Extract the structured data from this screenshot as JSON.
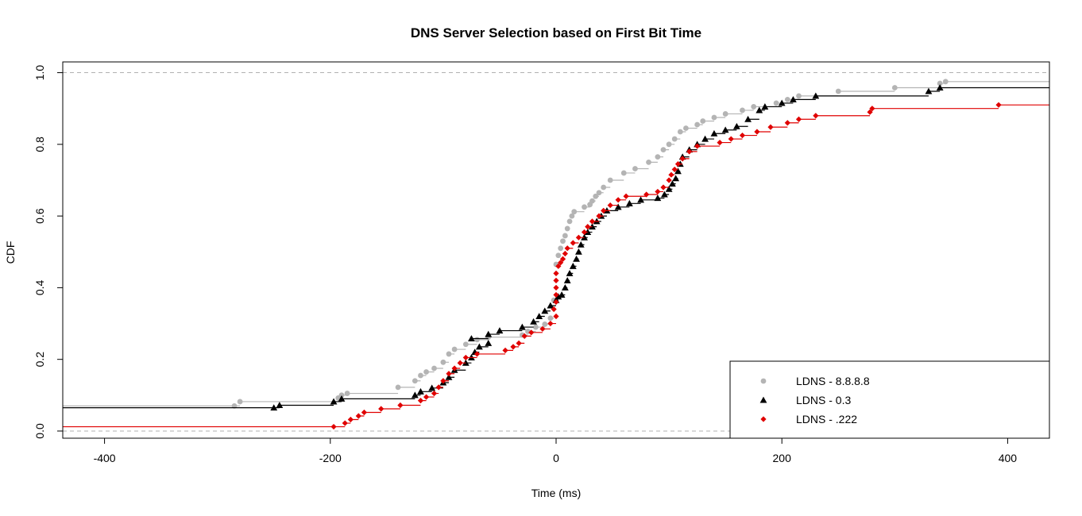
{
  "chart_data": {
    "type": "line",
    "step": true,
    "title": "DNS Server Selection based on First Bit Time",
    "xlabel": "Time (ms)",
    "ylabel": "CDF",
    "xlim": [
      -437,
      437
    ],
    "ylim": [
      -0.02,
      1.03
    ],
    "xticks": [
      -400,
      -200,
      0,
      200,
      400
    ],
    "yticks": [
      0.0,
      0.2,
      0.4,
      0.6,
      0.8,
      1.0
    ],
    "ytick_labels": [
      "0.0",
      "0.2",
      "0.4",
      "0.6",
      "0.8",
      "1.0"
    ],
    "reference_lines": [
      0,
      1
    ],
    "grid": false,
    "legend_position": "bottom-right",
    "series": [
      {
        "name": "LDNS - 8.8.8.8",
        "color": "#b4b4b4",
        "marker": "circle",
        "points": [
          [
            -285,
            0.07
          ],
          [
            -280,
            0.082
          ],
          [
            -193,
            0.092
          ],
          [
            -190,
            0.1
          ],
          [
            -185,
            0.105
          ],
          [
            -140,
            0.122
          ],
          [
            -125,
            0.14
          ],
          [
            -120,
            0.155
          ],
          [
            -115,
            0.165
          ],
          [
            -108,
            0.175
          ],
          [
            -100,
            0.192
          ],
          [
            -95,
            0.215
          ],
          [
            -90,
            0.228
          ],
          [
            -80,
            0.242
          ],
          [
            -70,
            0.255
          ],
          [
            -60,
            0.262
          ],
          [
            -30,
            0.268
          ],
          [
            -25,
            0.278
          ],
          [
            -18,
            0.29
          ],
          [
            -10,
            0.298
          ],
          [
            -5,
            0.315
          ],
          [
            -2,
            0.365
          ],
          [
            0,
            0.465
          ],
          [
            2,
            0.49
          ],
          [
            4,
            0.51
          ],
          [
            6,
            0.53
          ],
          [
            8,
            0.545
          ],
          [
            10,
            0.565
          ],
          [
            12,
            0.585
          ],
          [
            14,
            0.6
          ],
          [
            16,
            0.612
          ],
          [
            25,
            0.625
          ],
          [
            30,
            0.632
          ],
          [
            32,
            0.642
          ],
          [
            35,
            0.655
          ],
          [
            38,
            0.665
          ],
          [
            42,
            0.68
          ],
          [
            48,
            0.7
          ],
          [
            60,
            0.72
          ],
          [
            70,
            0.732
          ],
          [
            82,
            0.75
          ],
          [
            90,
            0.765
          ],
          [
            95,
            0.785
          ],
          [
            100,
            0.8
          ],
          [
            105,
            0.815
          ],
          [
            110,
            0.835
          ],
          [
            115,
            0.845
          ],
          [
            125,
            0.855
          ],
          [
            130,
            0.865
          ],
          [
            140,
            0.875
          ],
          [
            150,
            0.885
          ],
          [
            165,
            0.895
          ],
          [
            175,
            0.905
          ],
          [
            195,
            0.915
          ],
          [
            205,
            0.925
          ],
          [
            215,
            0.935
          ],
          [
            250,
            0.948
          ],
          [
            300,
            0.958
          ],
          [
            340,
            0.97
          ],
          [
            345,
            0.975
          ]
        ]
      },
      {
        "name": "LDNS - 0.3",
        "color": "#000000",
        "marker": "triangle",
        "points": [
          [
            -250,
            0.065
          ],
          [
            -245,
            0.072
          ],
          [
            -197,
            0.082
          ],
          [
            -190,
            0.09
          ],
          [
            -125,
            0.1
          ],
          [
            -120,
            0.11
          ],
          [
            -110,
            0.12
          ],
          [
            -100,
            0.135
          ],
          [
            -95,
            0.15
          ],
          [
            -90,
            0.17
          ],
          [
            -80,
            0.19
          ],
          [
            -75,
            0.205
          ],
          [
            -72,
            0.22
          ],
          [
            -68,
            0.235
          ],
          [
            -60,
            0.245
          ],
          [
            -75,
            0.258
          ],
          [
            -60,
            0.27
          ],
          [
            -50,
            0.28
          ],
          [
            -30,
            0.29
          ],
          [
            -20,
            0.305
          ],
          [
            -15,
            0.32
          ],
          [
            -10,
            0.335
          ],
          [
            -5,
            0.35
          ],
          [
            0,
            0.365
          ],
          [
            2,
            0.375
          ],
          [
            5,
            0.38
          ],
          [
            8,
            0.4
          ],
          [
            10,
            0.42
          ],
          [
            12,
            0.44
          ],
          [
            15,
            0.46
          ],
          [
            18,
            0.48
          ],
          [
            20,
            0.5
          ],
          [
            22,
            0.52
          ],
          [
            25,
            0.54
          ],
          [
            28,
            0.555
          ],
          [
            32,
            0.57
          ],
          [
            36,
            0.585
          ],
          [
            40,
            0.6
          ],
          [
            45,
            0.615
          ],
          [
            55,
            0.625
          ],
          [
            65,
            0.635
          ],
          [
            75,
            0.645
          ],
          [
            90,
            0.65
          ],
          [
            96,
            0.66
          ],
          [
            100,
            0.675
          ],
          [
            103,
            0.69
          ],
          [
            106,
            0.705
          ],
          [
            108,
            0.725
          ],
          [
            110,
            0.745
          ],
          [
            112,
            0.765
          ],
          [
            118,
            0.785
          ],
          [
            125,
            0.8
          ],
          [
            132,
            0.815
          ],
          [
            140,
            0.83
          ],
          [
            150,
            0.84
          ],
          [
            160,
            0.85
          ],
          [
            170,
            0.87
          ],
          [
            180,
            0.895
          ],
          [
            185,
            0.905
          ],
          [
            200,
            0.915
          ],
          [
            210,
            0.925
          ],
          [
            230,
            0.935
          ],
          [
            330,
            0.948
          ],
          [
            340,
            0.958
          ]
        ]
      },
      {
        "name": "LDNS - .222",
        "color": "#e00000",
        "marker": "diamond",
        "points": [
          [
            -197,
            0.012
          ],
          [
            -187,
            0.022
          ],
          [
            -182,
            0.032
          ],
          [
            -175,
            0.042
          ],
          [
            -170,
            0.052
          ],
          [
            -155,
            0.062
          ],
          [
            -138,
            0.072
          ],
          [
            -120,
            0.085
          ],
          [
            -115,
            0.095
          ],
          [
            -108,
            0.105
          ],
          [
            -104,
            0.122
          ],
          [
            -100,
            0.14
          ],
          [
            -95,
            0.16
          ],
          [
            -90,
            0.175
          ],
          [
            -85,
            0.19
          ],
          [
            -80,
            0.205
          ],
          [
            -70,
            0.215
          ],
          [
            -45,
            0.225
          ],
          [
            -38,
            0.235
          ],
          [
            -33,
            0.245
          ],
          [
            -28,
            0.265
          ],
          [
            -22,
            0.275
          ],
          [
            -12,
            0.285
          ],
          [
            -5,
            0.3
          ],
          [
            0,
            0.32
          ],
          [
            -2,
            0.34
          ],
          [
            0,
            0.36
          ],
          [
            0,
            0.38
          ],
          [
            0,
            0.4
          ],
          [
            0,
            0.42
          ],
          [
            0,
            0.44
          ],
          [
            2,
            0.46
          ],
          [
            4,
            0.47
          ],
          [
            6,
            0.48
          ],
          [
            8,
            0.495
          ],
          [
            10,
            0.51
          ],
          [
            15,
            0.525
          ],
          [
            20,
            0.54
          ],
          [
            25,
            0.555
          ],
          [
            28,
            0.57
          ],
          [
            32,
            0.585
          ],
          [
            38,
            0.6
          ],
          [
            42,
            0.615
          ],
          [
            48,
            0.63
          ],
          [
            55,
            0.645
          ],
          [
            62,
            0.655
          ],
          [
            80,
            0.66
          ],
          [
            90,
            0.668
          ],
          [
            95,
            0.68
          ],
          [
            100,
            0.7
          ],
          [
            102,
            0.715
          ],
          [
            105,
            0.73
          ],
          [
            108,
            0.745
          ],
          [
            112,
            0.76
          ],
          [
            118,
            0.78
          ],
          [
            125,
            0.795
          ],
          [
            145,
            0.805
          ],
          [
            155,
            0.815
          ],
          [
            165,
            0.825
          ],
          [
            178,
            0.835
          ],
          [
            190,
            0.848
          ],
          [
            205,
            0.86
          ],
          [
            215,
            0.87
          ],
          [
            230,
            0.88
          ],
          [
            278,
            0.89
          ],
          [
            280,
            0.9
          ],
          [
            392,
            0.91
          ]
        ]
      }
    ]
  }
}
